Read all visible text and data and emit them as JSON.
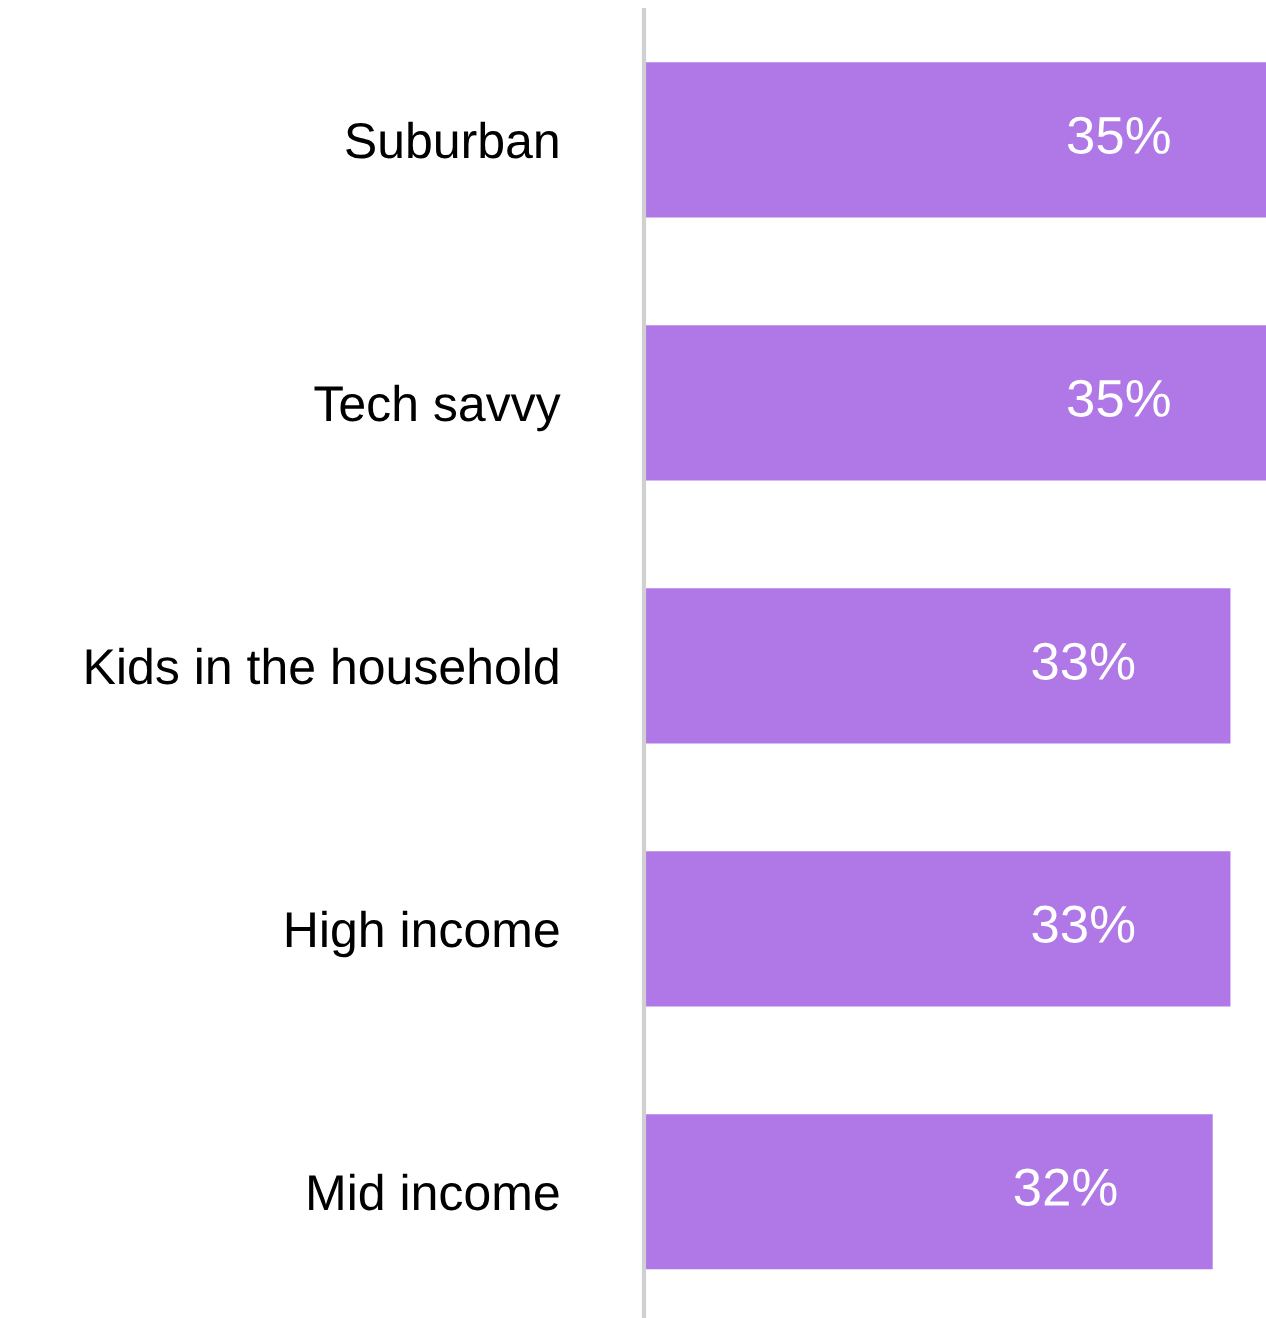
{
  "chart_data": {
    "type": "bar",
    "orientation": "horizontal",
    "categories": [
      "Suburban",
      "Tech savvy",
      "Kids in the household",
      "High income",
      "Mid income"
    ],
    "values": [
      35,
      35,
      33,
      33,
      32
    ],
    "value_labels": [
      "35%",
      "35%",
      "33%",
      "33%",
      "32%"
    ],
    "color": "#b078e6",
    "tick_labels": "y",
    "grid": false,
    "legend": false
  }
}
